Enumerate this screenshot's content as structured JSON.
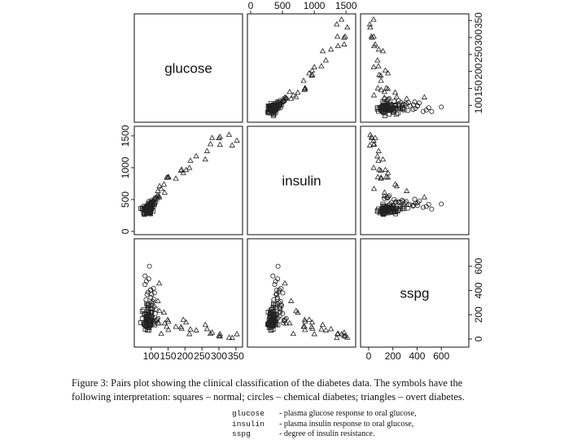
{
  "chart_data": {
    "type": "scatter",
    "title": "Pairs plot",
    "variables": [
      "glucose",
      "insulin",
      "sspg"
    ],
    "ranges": {
      "glucose": [
        60,
        360
      ],
      "insulin": [
        0,
        1600
      ],
      "sspg": [
        -40,
        800
      ]
    },
    "ticks": {
      "glucose": [
        100,
        150,
        200,
        250,
        300,
        350
      ],
      "insulin": [
        0,
        500,
        1000,
        1500
      ],
      "sspg": [
        0,
        200,
        400,
        600
      ]
    },
    "tick_labels": {
      "glucose_bottom": [
        "100",
        "150",
        "200",
        "250",
        "300",
        "350"
      ],
      "glucose_right": [
        "100",
        "150",
        "200",
        "250",
        "300",
        "350"
      ],
      "insulin_top": [
        "0",
        "500",
        "1000",
        "1500"
      ],
      "insulin_left": [
        "0",
        "500",
        "1000",
        "1500"
      ],
      "sspg_bottom": [
        "0",
        "200",
        "400",
        "600"
      ],
      "sspg_right": [
        "0",
        "200",
        "400",
        "600"
      ]
    },
    "symbols": {
      "normal": "square",
      "chemical": "circle",
      "overt": "triangle"
    },
    "series": [
      {
        "name": "normal",
        "symbol": "square",
        "points": [
          [
            80,
            356,
            124
          ],
          [
            97,
            289,
            117
          ],
          [
            105,
            319,
            143
          ],
          [
            90,
            356,
            199
          ],
          [
            90,
            323,
            240
          ],
          [
            86,
            381,
            157
          ],
          [
            100,
            350,
            221
          ],
          [
            85,
            301,
            186
          ],
          [
            97,
            379,
            142
          ],
          [
            97,
            296,
            131
          ],
          [
            91,
            353,
            221
          ],
          [
            87,
            306,
            178
          ],
          [
            78,
            290,
            136
          ],
          [
            90,
            371,
            200
          ],
          [
            86,
            312,
            208
          ],
          [
            80,
            393,
            202
          ],
          [
            90,
            364,
            152
          ],
          [
            99,
            359,
            185
          ],
          [
            85,
            296,
            116
          ],
          [
            90,
            345,
            123
          ],
          [
            90,
            378,
            136
          ],
          [
            88,
            304,
            134
          ],
          [
            95,
            347,
            184
          ],
          [
            90,
            327,
            192
          ],
          [
            92,
            386,
            279
          ],
          [
            74,
            365,
            228
          ],
          [
            98,
            365,
            145
          ],
          [
            100,
            352,
            172
          ],
          [
            86,
            325,
            179
          ],
          [
            98,
            321,
            222
          ],
          [
            70,
            360,
            134
          ],
          [
            99,
            336,
            143
          ],
          [
            75,
            352,
            169
          ],
          [
            90,
            353,
            263
          ],
          [
            85,
            373,
            174
          ],
          [
            99,
            376,
            134
          ],
          [
            100,
            367,
            182
          ],
          [
            78,
            335,
            241
          ],
          [
            106,
            396,
            128
          ],
          [
            98,
            277,
            222
          ],
          [
            102,
            378,
            165
          ],
          [
            90,
            360,
            282
          ],
          [
            94,
            291,
            94
          ],
          [
            80,
            269,
            121
          ],
          [
            93,
            318,
            73
          ],
          [
            86,
            328,
            106
          ],
          [
            85,
            334,
            118
          ],
          [
            96,
            356,
            112
          ],
          [
            88,
            291,
            157
          ],
          [
            87,
            360,
            292
          ],
          [
            94,
            313,
            200
          ],
          [
            93,
            306,
            220
          ],
          [
            86,
            319,
            144
          ],
          [
            86,
            349,
            109
          ],
          [
            96,
            332,
            151
          ],
          [
            86,
            323,
            158
          ],
          [
            89,
            323,
            73
          ],
          [
            83,
            351,
            81
          ],
          [
            100,
            398,
            122
          ],
          [
            110,
            426,
            117
          ],
          [
            81,
            343,
            208
          ],
          [
            92,
            317,
            95
          ],
          [
            87,
            319,
            105
          ],
          [
            82,
            279,
            124
          ],
          [
            90,
            403,
            168
          ],
          [
            90,
            310,
            103
          ],
          [
            101,
            352,
            190
          ],
          [
            87,
            327,
            154
          ],
          [
            88,
            378,
            183
          ],
          [
            95,
            304,
            128
          ],
          [
            88,
            370,
            165
          ],
          [
            98,
            321,
            122
          ],
          [
            94,
            342,
            153
          ]
        ]
      },
      {
        "name": "chemical",
        "symbol": "circle",
        "points": [
          [
            93,
            472,
            285
          ],
          [
            114,
            458,
            248
          ],
          [
            102,
            489,
            276
          ],
          [
            103,
            455,
            188
          ],
          [
            102,
            467,
            225
          ],
          [
            115,
            524,
            155
          ],
          [
            100,
            451,
            219
          ],
          [
            112,
            528,
            150
          ],
          [
            119,
            515,
            131
          ],
          [
            99,
            420,
            342
          ],
          [
            104,
            418,
            288
          ],
          [
            90,
            406,
            204
          ],
          [
            96,
            431,
            175
          ],
          [
            82,
            378,
            450
          ],
          [
            86,
            392,
            476
          ],
          [
            92,
            400,
            264
          ],
          [
            102,
            411,
            370
          ],
          [
            98,
            407,
            403
          ],
          [
            109,
            460,
            266
          ],
          [
            108,
            420,
            329
          ],
          [
            104,
            460,
            247
          ],
          [
            107,
            477,
            418
          ],
          [
            88,
            399,
            367
          ],
          [
            93,
            424,
            496
          ],
          [
            99,
            449,
            405
          ],
          [
            91,
            438,
            386
          ],
          [
            85,
            363,
            325
          ],
          [
            82,
            350,
            520
          ],
          [
            100,
            446,
            300
          ],
          [
            112,
            501,
            210
          ],
          [
            120,
            560,
            170
          ],
          [
            118,
            542,
            160
          ],
          [
            95,
            430,
            600
          ],
          [
            98,
            462,
            250
          ],
          [
            110,
            505,
            380
          ],
          [
            105,
            470,
            310
          ]
        ]
      },
      {
        "name": "overt",
        "symbol": "triangle",
        "points": [
          [
            300,
            1468,
            28
          ],
          [
            303,
            1487,
            23
          ],
          [
            125,
            714,
            232
          ],
          [
            280,
            1470,
            54
          ],
          [
            216,
            1113,
            81
          ],
          [
            190,
            972,
            87
          ],
          [
            151,
            854,
            76
          ],
          [
            303,
            1364,
            42
          ],
          [
            173,
            832,
            102
          ],
          [
            203,
            967,
            138
          ],
          [
            195,
            920,
            160
          ],
          [
            140,
            613,
            131
          ],
          [
            151,
            857,
            145
          ],
          [
            275,
            1373,
            45
          ],
          [
            260,
            1133,
            118
          ],
          [
            149,
            849,
            159
          ],
          [
            233,
            1183,
            73
          ],
          [
            146,
            847,
            103
          ],
          [
            124,
            538,
            460
          ],
          [
            213,
            1001,
            42
          ],
          [
            330,
            1520,
            13
          ],
          [
            123,
            557,
            130
          ],
          [
            130,
            670,
            44
          ],
          [
            120,
            636,
            314
          ],
          [
            138,
            741,
            219
          ],
          [
            188,
            958,
            100
          ],
          [
            339,
            1354,
            10
          ],
          [
            265,
            1263,
            83
          ],
          [
            353,
            1428,
            41
          ]
        ]
      }
    ]
  },
  "caption": {
    "line1": "Figure 3: Pairs plot showing the clinical classification of the diabetes data. The symbols have the",
    "line2": "following interpretation: squares – normal; circles – chemical diabetes; triangles – overt diabetes."
  },
  "legend": [
    {
      "var": "glucose",
      "desc": "- plasma glucose response to oral glucose,"
    },
    {
      "var": "insulin",
      "desc": "- plasma insulin response to oral glucose,"
    },
    {
      "var": "sspg",
      "desc": "- degree of insulin resistance."
    }
  ]
}
